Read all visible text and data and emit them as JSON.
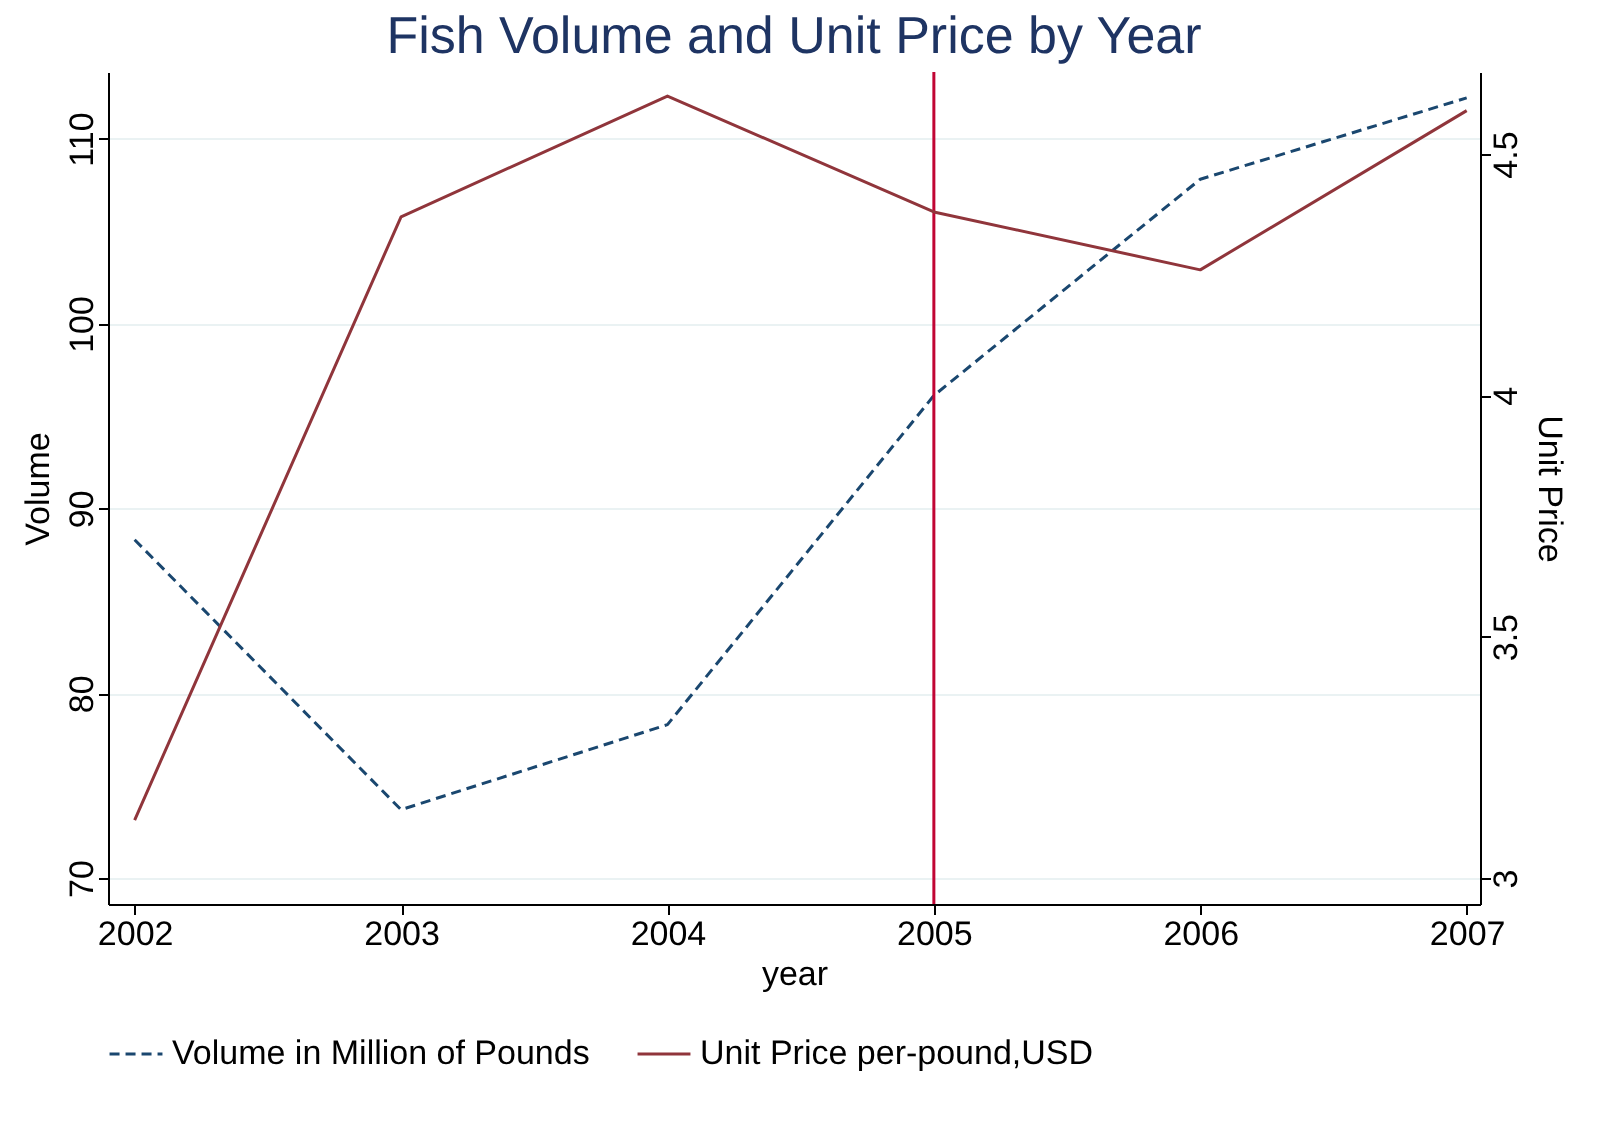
{
  "chart_data": {
    "type": "line",
    "title": "Fish Volume and Unit Price by Year",
    "xlabel": "year",
    "ylabel": "Volume",
    "y2label": "Unit Price",
    "x": [
      2002,
      2003,
      2004,
      2005,
      2006,
      2007
    ],
    "xlim": [
      2001.9,
      2007.05
    ],
    "xticks": [
      2002,
      2003,
      2004,
      2005,
      2006,
      2007
    ],
    "ylim": [
      68.6,
      113.6
    ],
    "yticks": [
      70,
      80,
      90,
      100,
      110
    ],
    "y2lim": [
      2.946,
      4.67
    ],
    "y2ticks": [
      3,
      3.5,
      4,
      4.5
    ],
    "series": [
      {
        "name": "Volume in Million of Pounds",
        "color": "#1a476f",
        "line_style": "dashed",
        "values": [
          88.3,
          73.7,
          78.3,
          96.1,
          107.8,
          112.2
        ]
      },
      {
        "name": "Unit Price per-pound,USD",
        "color": "#90353b",
        "line_style": "solid",
        "axis": "y2",
        "values": [
          3.12,
          4.37,
          4.62,
          4.38,
          4.26,
          4.59
        ]
      }
    ],
    "ref_lines": [
      {
        "axis": "x",
        "value": 2005,
        "color": "#c10534"
      }
    ],
    "grid": "y",
    "legend": "bottom"
  }
}
